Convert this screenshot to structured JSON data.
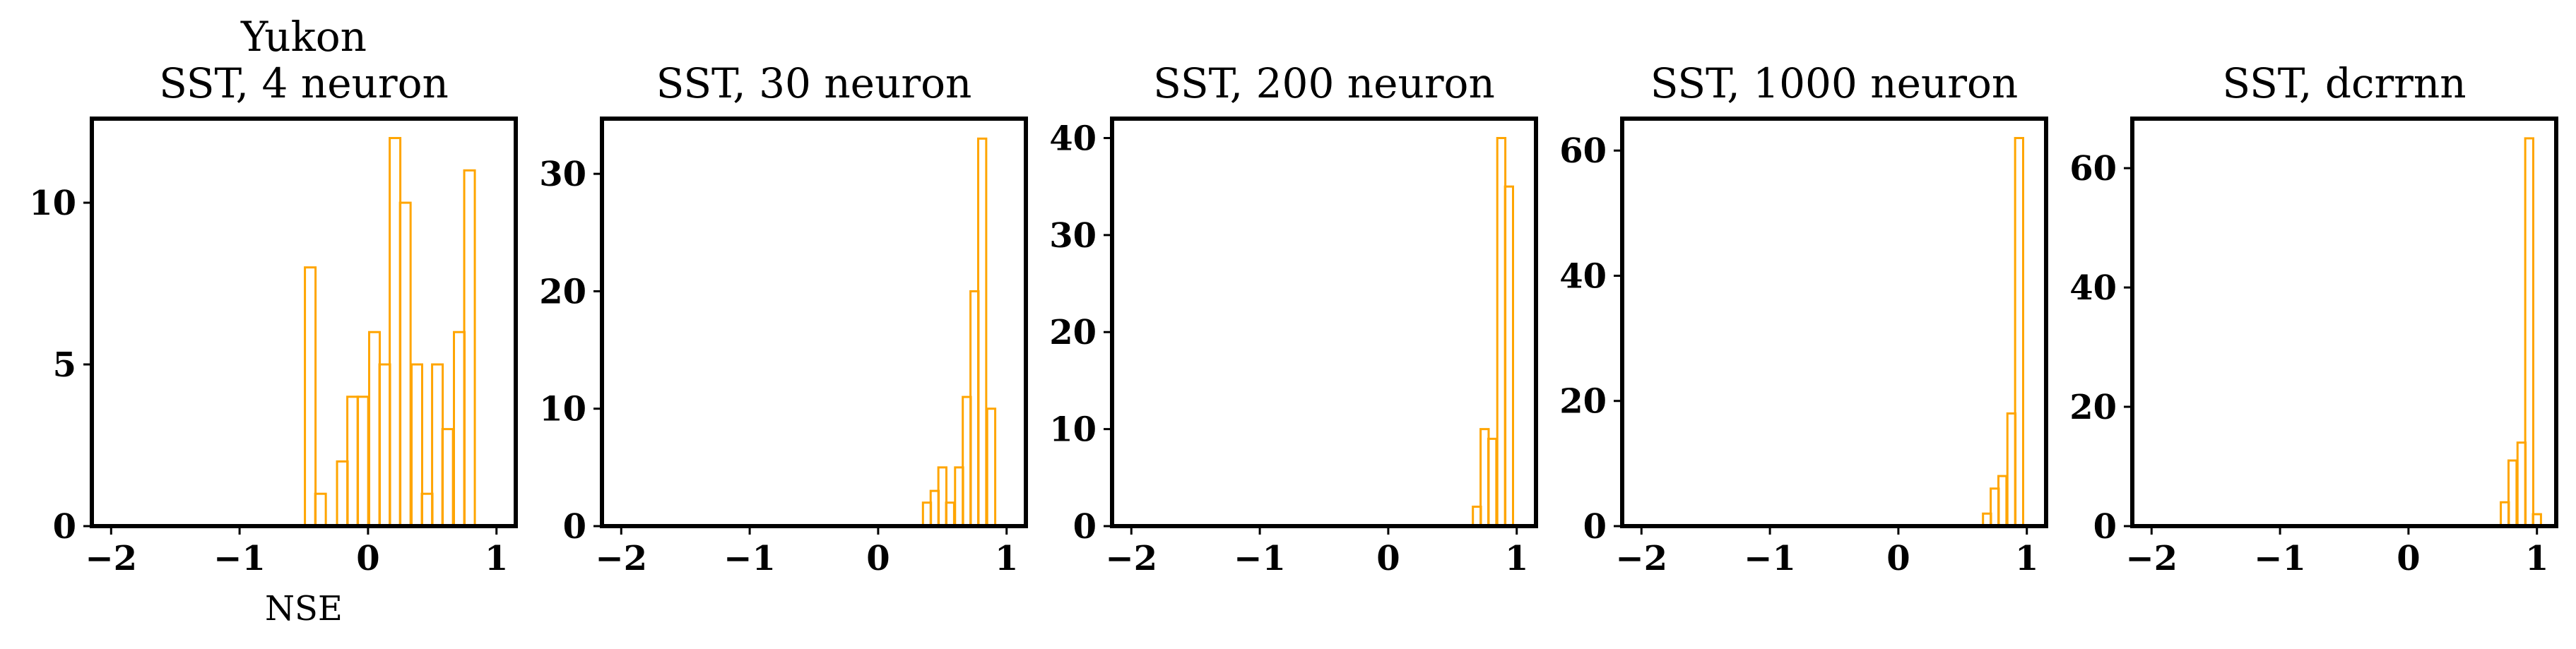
{
  "style": {
    "bar_edge_color": "#ffa500",
    "axis_color": "#000000",
    "background": "#ffffff"
  },
  "chart_data": [
    {
      "type": "bar",
      "subtype": "step-histogram",
      "title_lines": [
        "Yukon",
        "SST, 4 neuron"
      ],
      "xlabel": "NSE",
      "ylabel": "",
      "xlim": [
        -2.15,
        1.15
      ],
      "ylim": [
        0,
        12.6
      ],
      "xticks": [
        -2,
        -1,
        0,
        1
      ],
      "xtick_labels": [
        "−2",
        "−1",
        "0",
        "1"
      ],
      "yticks": [
        0,
        5,
        10
      ],
      "ytick_labels": [
        "0",
        "5",
        "10"
      ],
      "bin_width": 0.0825,
      "x": [
        -0.45,
        -0.37,
        -0.28,
        -0.2,
        -0.12,
        -0.04,
        0.05,
        0.13,
        0.21,
        0.29,
        0.38,
        0.46,
        0.54,
        0.62,
        0.71,
        0.79
      ],
      "values": [
        8,
        1,
        0,
        2,
        4,
        4,
        6,
        5,
        12,
        10,
        5,
        1,
        5,
        3,
        6,
        11
      ],
      "grid": false,
      "legend": "none"
    },
    {
      "type": "bar",
      "subtype": "step-histogram",
      "title_lines": [
        "SST, 30 neuron"
      ],
      "xlabel": "",
      "ylabel": "",
      "xlim": [
        -2.15,
        1.15
      ],
      "ylim": [
        0,
        34.7
      ],
      "xticks": [
        -2,
        -1,
        0,
        1
      ],
      "xtick_labels": [
        "−2",
        "−1",
        "0",
        "1"
      ],
      "yticks": [
        0,
        10,
        20,
        30
      ],
      "ytick_labels": [
        "0",
        "10",
        "20",
        "30"
      ],
      "bin_width": 0.0625,
      "x": [
        0.38,
        0.44,
        0.5,
        0.56,
        0.63,
        0.69,
        0.75,
        0.81,
        0.88
      ],
      "values": [
        2,
        3,
        5,
        2,
        5,
        11,
        20,
        33,
        10
      ],
      "grid": false,
      "legend": "none"
    },
    {
      "type": "bar",
      "subtype": "step-histogram",
      "title_lines": [
        "SST, 200 neuron"
      ],
      "xlabel": "",
      "ylabel": "",
      "xlim": [
        -2.15,
        1.15
      ],
      "ylim": [
        0,
        42
      ],
      "xticks": [
        -2,
        -1,
        0,
        1
      ],
      "xtick_labels": [
        "−2",
        "−1",
        "0",
        "1"
      ],
      "yticks": [
        0,
        10,
        20,
        30,
        40
      ],
      "ytick_labels": [
        "0",
        "10",
        "20",
        "30",
        "40"
      ],
      "bin_width": 0.0625,
      "x": [
        0.69,
        0.75,
        0.81,
        0.88,
        0.94
      ],
      "values": [
        2,
        10,
        9,
        40,
        35
      ],
      "grid": false,
      "legend": "none"
    },
    {
      "type": "bar",
      "subtype": "step-histogram",
      "title_lines": [
        "SST, 1000 neuron"
      ],
      "xlabel": "",
      "ylabel": "",
      "xlim": [
        -2.15,
        1.15
      ],
      "ylim": [
        0,
        65.1
      ],
      "xticks": [
        -2,
        -1,
        0,
        1
      ],
      "xtick_labels": [
        "−2",
        "−1",
        "0",
        "1"
      ],
      "yticks": [
        0,
        20,
        40,
        60
      ],
      "ytick_labels": [
        "0",
        "20",
        "40",
        "60"
      ],
      "bin_width": 0.0625,
      "x": [
        0.69,
        0.75,
        0.81,
        0.88,
        0.94
      ],
      "values": [
        2,
        6,
        8,
        18,
        62
      ],
      "grid": false,
      "legend": "none"
    },
    {
      "type": "bar",
      "subtype": "step-histogram",
      "title_lines": [
        "SST, dcrrnn"
      ],
      "xlabel": "",
      "ylabel": "",
      "xlim": [
        -2.15,
        1.15
      ],
      "ylim": [
        0,
        68.3
      ],
      "xticks": [
        -2,
        -1,
        0,
        1
      ],
      "xtick_labels": [
        "−2",
        "−1",
        "0",
        "1"
      ],
      "yticks": [
        0,
        20,
        40,
        60
      ],
      "ytick_labels": [
        "0",
        "20",
        "40",
        "60"
      ],
      "bin_width": 0.0625,
      "x": [
        0.75,
        0.81,
        0.88,
        0.94,
        1.0
      ],
      "values": [
        4,
        11,
        14,
        65,
        2
      ],
      "grid": false,
      "legend": "none"
    }
  ]
}
